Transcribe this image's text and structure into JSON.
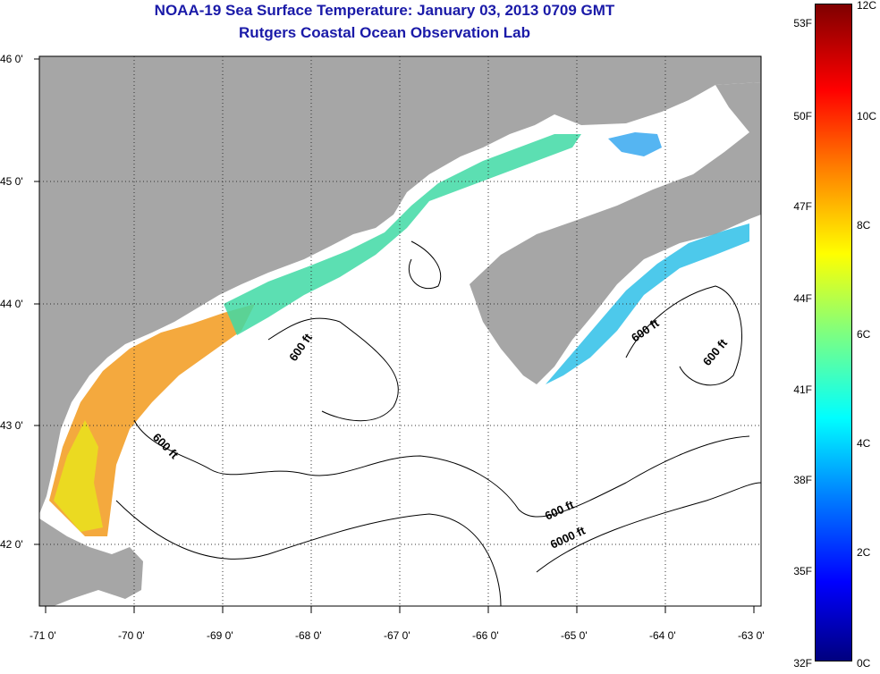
{
  "header": {
    "title": "NOAA-19 Sea Surface Temperature:  January 03, 2013 0709 GMT",
    "subtitle": "Rutgers Coastal Ocean Observation Lab"
  },
  "map": {
    "lat_labels": [
      "46 0'",
      "45 0'",
      "44 0'",
      "43 0'",
      "42 0'"
    ],
    "lon_labels": [
      "-71 0'",
      "-70 0'",
      "-69 0'",
      "-68 0'",
      "-67 0'",
      "-66 0'",
      "-65 0'",
      "-64 0'",
      "-63 0'"
    ],
    "contour_labels": [
      "600 ft",
      "600 ft",
      "600 ft",
      "600 ft",
      "600 ft",
      "6000 ft"
    ],
    "colors": {
      "land": "#a6a6a6",
      "ocean": "#ffffff",
      "contour": "#000000"
    }
  },
  "colorbar": {
    "fahrenheit": [
      "53F",
      "50F",
      "47F",
      "44F",
      "41F",
      "38F",
      "35F",
      "32F"
    ],
    "celsius": [
      "12C",
      "10C",
      "8C",
      "6C",
      "4C",
      "2C",
      "0C"
    ],
    "colors": [
      "#00007f",
      "#0000ff",
      "#007fff",
      "#00ffff",
      "#7fff7f",
      "#ffff00",
      "#ff7f00",
      "#ff0000",
      "#7f0000"
    ]
  }
}
